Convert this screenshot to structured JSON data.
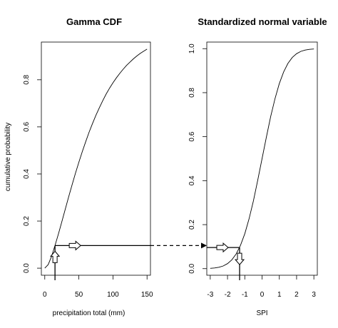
{
  "chart_data": [
    {
      "type": "line",
      "title": "Gamma CDF",
      "xlabel": "precipitation total (mm)",
      "ylabel": "cumulative probability",
      "xlim": [
        -5,
        155
      ],
      "ylim": [
        -0.03,
        0.96
      ],
      "xticks": [
        0,
        50,
        100,
        150
      ],
      "yticks": [
        0.0,
        0.2,
        0.4,
        0.6,
        0.8
      ],
      "ytick_labels": [
        "0.0",
        "0.2",
        "0.4",
        "0.6",
        "0.8"
      ],
      "x": [
        0,
        5,
        10,
        15,
        20,
        25,
        30,
        35,
        40,
        45,
        50,
        55,
        60,
        65,
        70,
        75,
        80,
        85,
        90,
        95,
        100,
        105,
        110,
        115,
        120,
        125,
        130,
        135,
        140,
        145,
        150
      ],
      "y": [
        0.0,
        0.015,
        0.05,
        0.096,
        0.145,
        0.197,
        0.25,
        0.303,
        0.353,
        0.403,
        0.45,
        0.495,
        0.537,
        0.577,
        0.614,
        0.649,
        0.681,
        0.711,
        0.739,
        0.764,
        0.787,
        0.808,
        0.827,
        0.845,
        0.861,
        0.875,
        0.889,
        0.901,
        0.912,
        0.921,
        0.93
      ],
      "marked_point": {
        "x": 15,
        "y": 0.096
      }
    },
    {
      "type": "line",
      "title": "Standardized normal variable",
      "xlabel": "SPI",
      "ylabel": "",
      "xlim": [
        -3.2,
        3.2
      ],
      "ylim": [
        -0.03,
        1.03
      ],
      "xticks": [
        -3,
        -2,
        -1,
        0,
        1,
        2,
        3
      ],
      "yticks": [
        0.0,
        0.2,
        0.4,
        0.6,
        0.8,
        1.0
      ],
      "ytick_labels": [
        "0.0",
        "0.2",
        "0.4",
        "0.6",
        "0.8",
        "1.0"
      ],
      "x": [
        -3,
        -2.75,
        -2.5,
        -2.25,
        -2,
        -1.75,
        -1.5,
        -1.25,
        -1,
        -0.75,
        -0.5,
        -0.25,
        0,
        0.25,
        0.5,
        0.75,
        1,
        1.25,
        1.5,
        1.75,
        2,
        2.25,
        2.5,
        2.75,
        3
      ],
      "y": [
        0.0013,
        0.003,
        0.0062,
        0.0122,
        0.0228,
        0.0401,
        0.0668,
        0.1056,
        0.1587,
        0.2266,
        0.3085,
        0.4013,
        0.5,
        0.5987,
        0.6915,
        0.7734,
        0.8413,
        0.8944,
        0.9332,
        0.9599,
        0.9772,
        0.9878,
        0.9938,
        0.997,
        0.9987
      ],
      "marked_point": {
        "x": -1.3,
        "y": 0.096
      }
    }
  ]
}
